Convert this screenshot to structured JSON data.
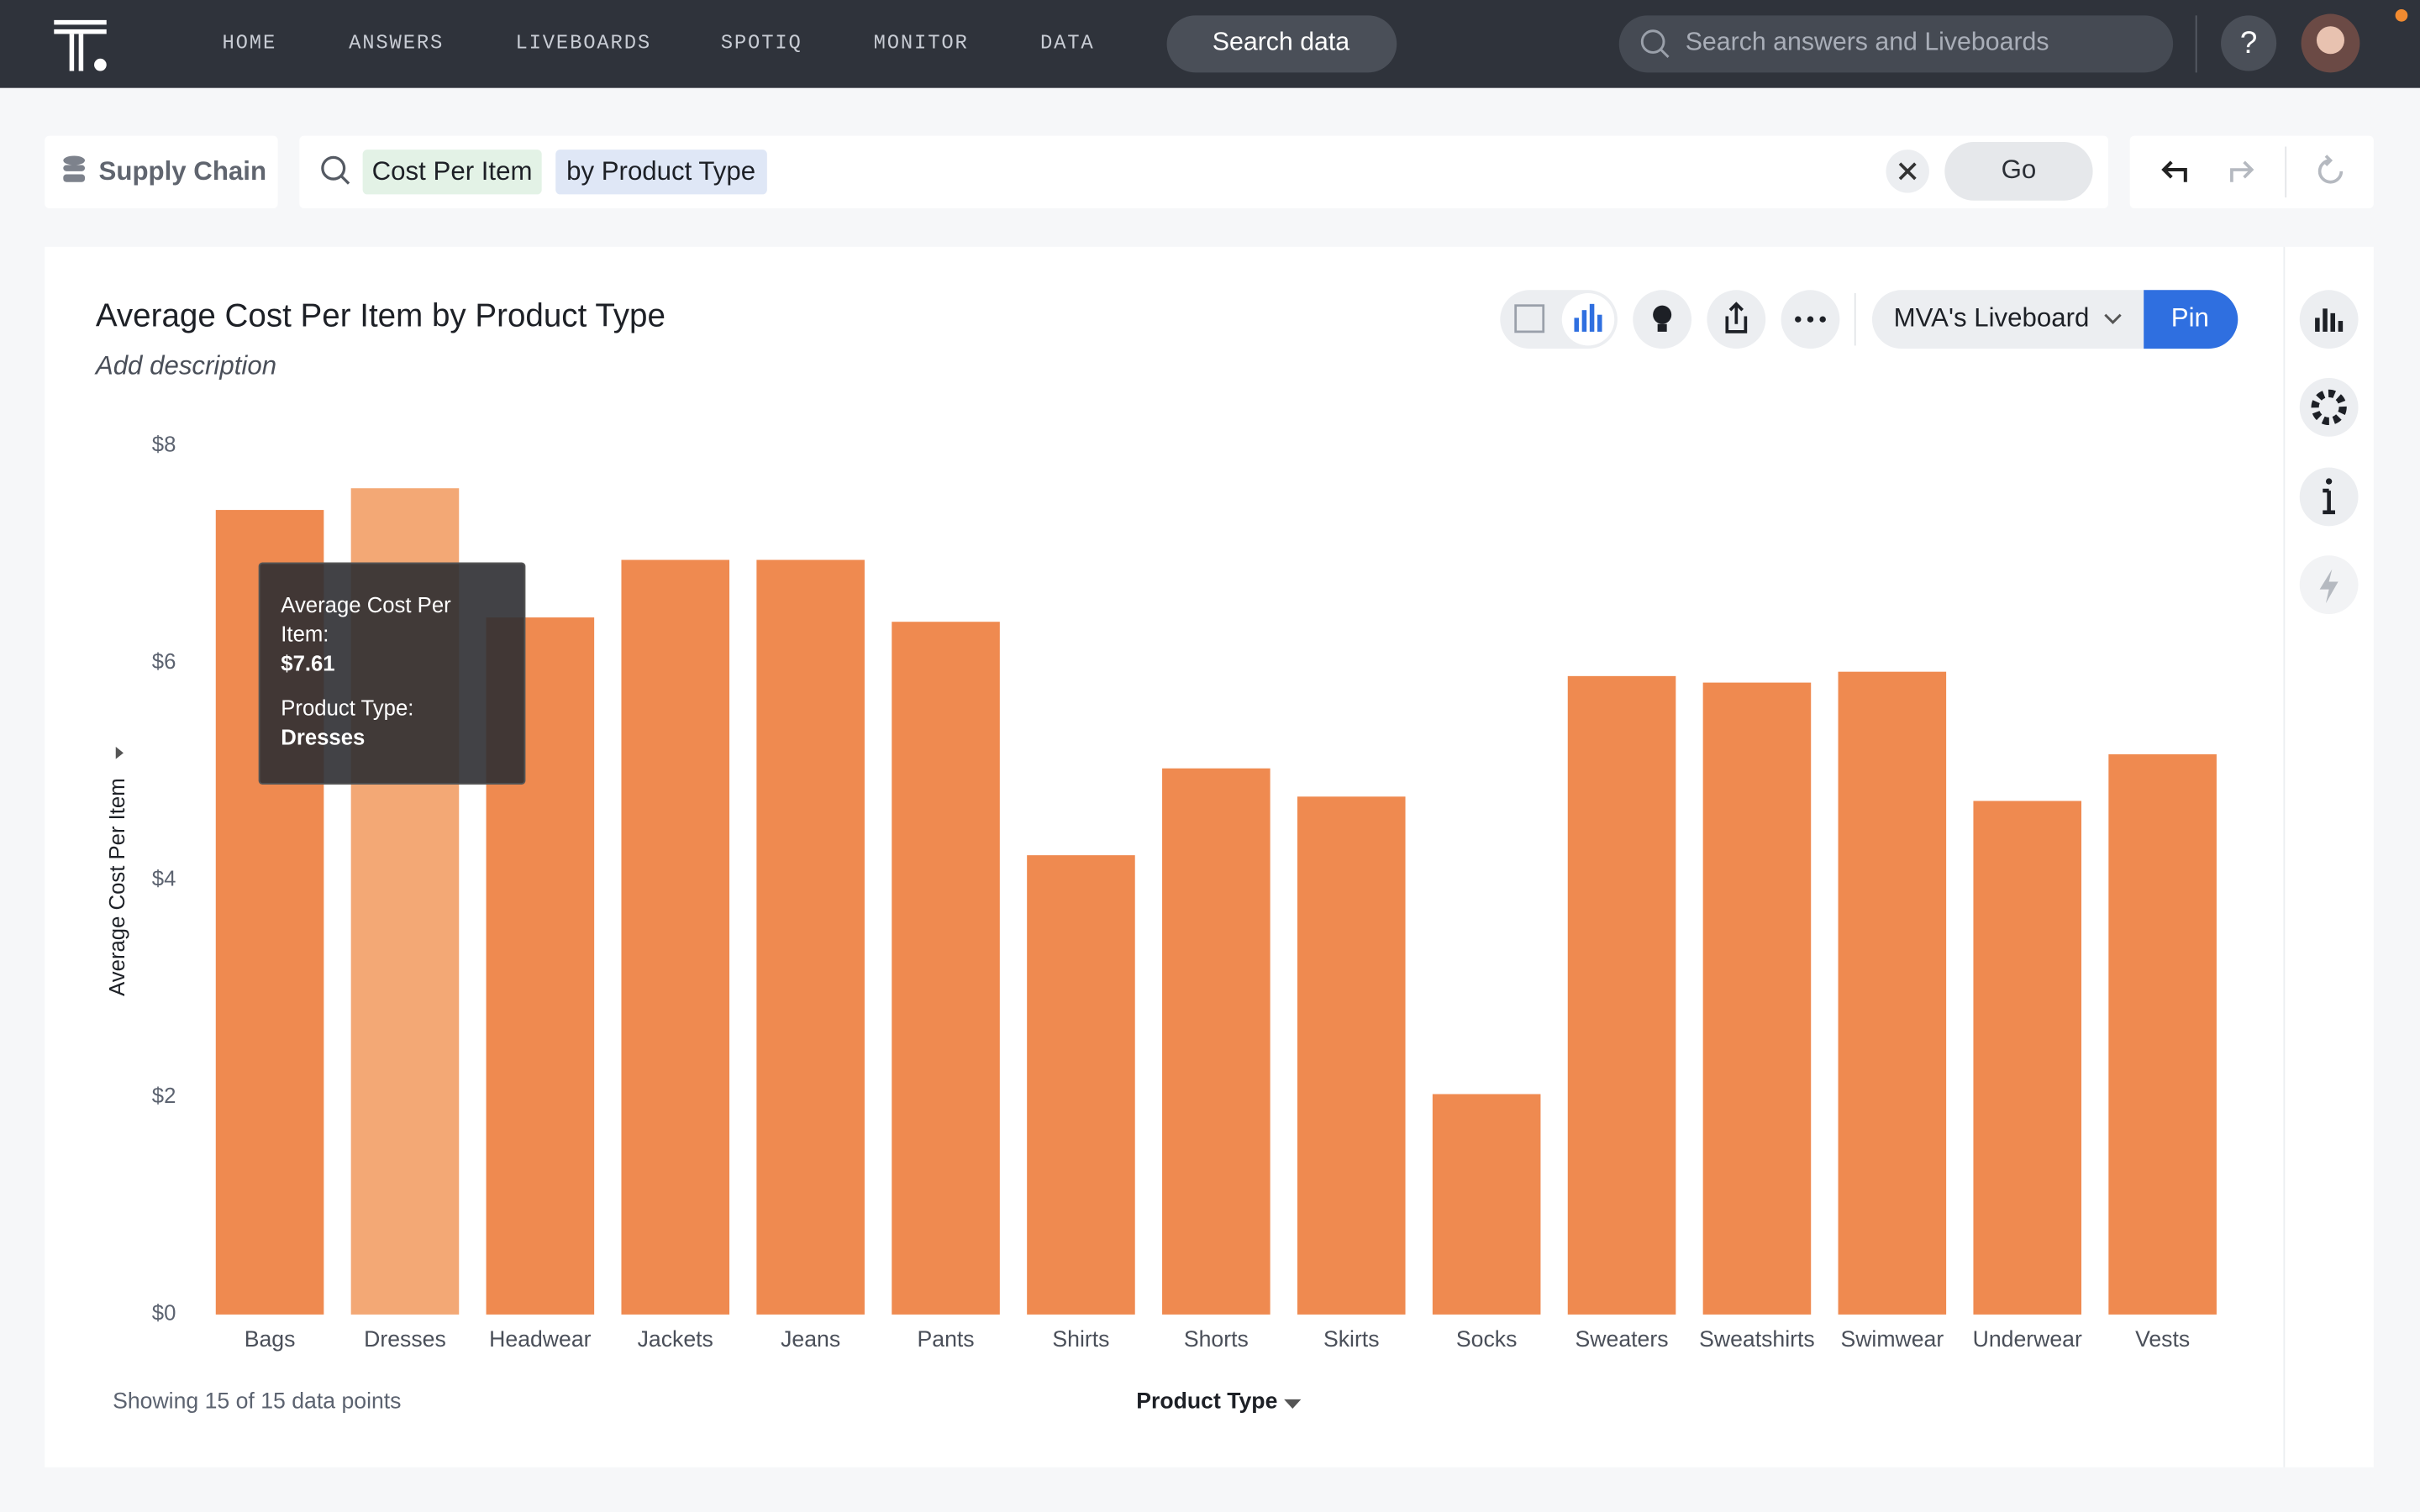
{
  "nav": {
    "items": [
      "HOME",
      "ANSWERS",
      "LIVEBOARDS",
      "SPOTIQ",
      "MONITOR",
      "DATA"
    ],
    "search_button": "Search data",
    "search_placeholder": "Search answers and Liveboards",
    "help": "?"
  },
  "search": {
    "source": "Supply Chain",
    "tokens": [
      "Cost Per Item",
      "by Product Type"
    ],
    "go": "Go"
  },
  "answer": {
    "description": "Add description",
    "liveboard": "MVA's Liveboard",
    "pin": "Pin",
    "footer": "Showing 15 of 15 data points"
  },
  "tooltip": {
    "measure_label": "Average Cost Per Item:",
    "value_label": "$7.61",
    "category_label": "Product Type:",
    "category": "Dresses"
  },
  "chart_data": {
    "type": "bar",
    "title": "Average Cost Per Item by Product Type",
    "x_label": "Product Type",
    "y_label": "Average Cost Per Item",
    "categories": [
      "Bags",
      "Dresses",
      "Headwear",
      "Jackets",
      "Jeans",
      "Pants",
      "Shirts",
      "Shorts",
      "Skirts",
      "Socks",
      "Sweaters",
      "Sweatshirts",
      "Swimwear",
      "Underwear",
      "Vests"
    ],
    "values": [
      7.41,
      7.61,
      6.42,
      6.95,
      6.95,
      6.38,
      4.23,
      5.03,
      4.77,
      2.03,
      5.88,
      5.82,
      5.92,
      4.73,
      5.16
    ],
    "color": "#ef8a50",
    "highlight_color": "#f3a875",
    "ylim": [
      0,
      8
    ],
    "yticks": [
      {
        "value": 0,
        "label": "$0"
      },
      {
        "value": 2,
        "label": "$2"
      },
      {
        "value": 4,
        "label": "$4"
      },
      {
        "value": 6,
        "label": "$6"
      },
      {
        "value": 8,
        "label": "$8"
      }
    ],
    "grid": false
  }
}
